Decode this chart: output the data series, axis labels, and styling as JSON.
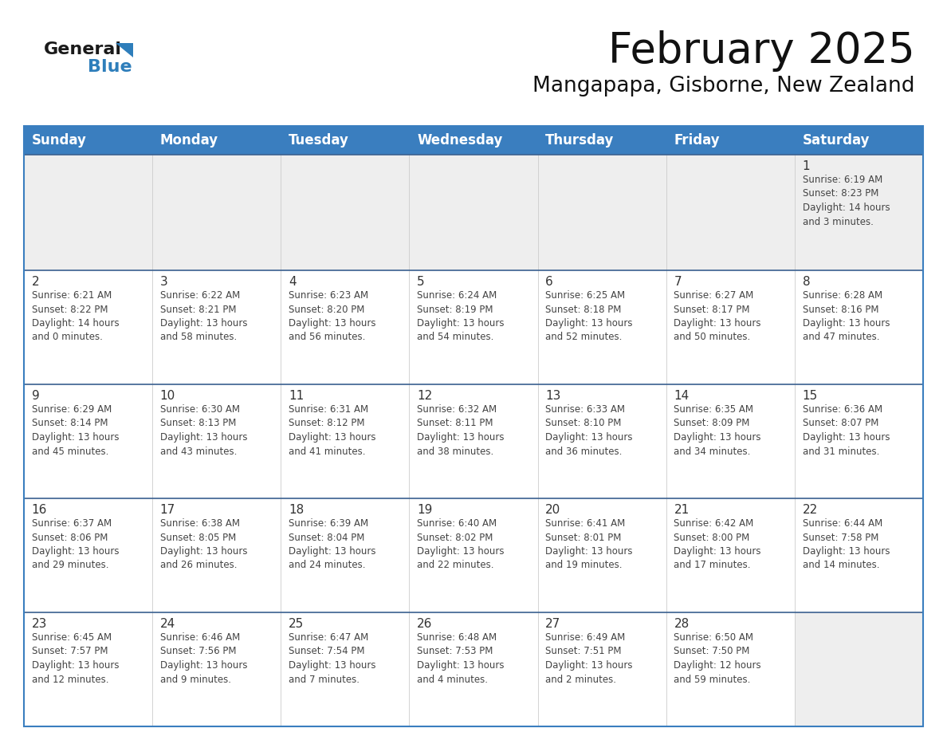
{
  "title": "February 2025",
  "subtitle": "Mangapapa, Gisborne, New Zealand",
  "header_bg": "#3a7ebf",
  "header_text": "#ffffff",
  "cell_bg_gray": "#eeeeee",
  "cell_bg_white": "#ffffff",
  "row_border_color": "#3a6090",
  "outer_border_color": "#3a7ebf",
  "col_divider_color": "#cccccc",
  "day_headers": [
    "Sunday",
    "Monday",
    "Tuesday",
    "Wednesday",
    "Thursday",
    "Friday",
    "Saturday"
  ],
  "calendar_data": [
    [
      null,
      null,
      null,
      null,
      null,
      null,
      {
        "day": 1,
        "sunrise": "6:19 AM",
        "sunset": "8:23 PM",
        "daylight": "14 hours\nand 3 minutes."
      }
    ],
    [
      {
        "day": 2,
        "sunrise": "6:21 AM",
        "sunset": "8:22 PM",
        "daylight": "14 hours\nand 0 minutes."
      },
      {
        "day": 3,
        "sunrise": "6:22 AM",
        "sunset": "8:21 PM",
        "daylight": "13 hours\nand 58 minutes."
      },
      {
        "day": 4,
        "sunrise": "6:23 AM",
        "sunset": "8:20 PM",
        "daylight": "13 hours\nand 56 minutes."
      },
      {
        "day": 5,
        "sunrise": "6:24 AM",
        "sunset": "8:19 PM",
        "daylight": "13 hours\nand 54 minutes."
      },
      {
        "day": 6,
        "sunrise": "6:25 AM",
        "sunset": "8:18 PM",
        "daylight": "13 hours\nand 52 minutes."
      },
      {
        "day": 7,
        "sunrise": "6:27 AM",
        "sunset": "8:17 PM",
        "daylight": "13 hours\nand 50 minutes."
      },
      {
        "day": 8,
        "sunrise": "6:28 AM",
        "sunset": "8:16 PM",
        "daylight": "13 hours\nand 47 minutes."
      }
    ],
    [
      {
        "day": 9,
        "sunrise": "6:29 AM",
        "sunset": "8:14 PM",
        "daylight": "13 hours\nand 45 minutes."
      },
      {
        "day": 10,
        "sunrise": "6:30 AM",
        "sunset": "8:13 PM",
        "daylight": "13 hours\nand 43 minutes."
      },
      {
        "day": 11,
        "sunrise": "6:31 AM",
        "sunset": "8:12 PM",
        "daylight": "13 hours\nand 41 minutes."
      },
      {
        "day": 12,
        "sunrise": "6:32 AM",
        "sunset": "8:11 PM",
        "daylight": "13 hours\nand 38 minutes."
      },
      {
        "day": 13,
        "sunrise": "6:33 AM",
        "sunset": "8:10 PM",
        "daylight": "13 hours\nand 36 minutes."
      },
      {
        "day": 14,
        "sunrise": "6:35 AM",
        "sunset": "8:09 PM",
        "daylight": "13 hours\nand 34 minutes."
      },
      {
        "day": 15,
        "sunrise": "6:36 AM",
        "sunset": "8:07 PM",
        "daylight": "13 hours\nand 31 minutes."
      }
    ],
    [
      {
        "day": 16,
        "sunrise": "6:37 AM",
        "sunset": "8:06 PM",
        "daylight": "13 hours\nand 29 minutes."
      },
      {
        "day": 17,
        "sunrise": "6:38 AM",
        "sunset": "8:05 PM",
        "daylight": "13 hours\nand 26 minutes."
      },
      {
        "day": 18,
        "sunrise": "6:39 AM",
        "sunset": "8:04 PM",
        "daylight": "13 hours\nand 24 minutes."
      },
      {
        "day": 19,
        "sunrise": "6:40 AM",
        "sunset": "8:02 PM",
        "daylight": "13 hours\nand 22 minutes."
      },
      {
        "day": 20,
        "sunrise": "6:41 AM",
        "sunset": "8:01 PM",
        "daylight": "13 hours\nand 19 minutes."
      },
      {
        "day": 21,
        "sunrise": "6:42 AM",
        "sunset": "8:00 PM",
        "daylight": "13 hours\nand 17 minutes."
      },
      {
        "day": 22,
        "sunrise": "6:44 AM",
        "sunset": "7:58 PM",
        "daylight": "13 hours\nand 14 minutes."
      }
    ],
    [
      {
        "day": 23,
        "sunrise": "6:45 AM",
        "sunset": "7:57 PM",
        "daylight": "13 hours\nand 12 minutes."
      },
      {
        "day": 24,
        "sunrise": "6:46 AM",
        "sunset": "7:56 PM",
        "daylight": "13 hours\nand 9 minutes."
      },
      {
        "day": 25,
        "sunrise": "6:47 AM",
        "sunset": "7:54 PM",
        "daylight": "13 hours\nand 7 minutes."
      },
      {
        "day": 26,
        "sunrise": "6:48 AM",
        "sunset": "7:53 PM",
        "daylight": "13 hours\nand 4 minutes."
      },
      {
        "day": 27,
        "sunrise": "6:49 AM",
        "sunset": "7:51 PM",
        "daylight": "13 hours\nand 2 minutes."
      },
      {
        "day": 28,
        "sunrise": "6:50 AM",
        "sunset": "7:50 PM",
        "daylight": "12 hours\nand 59 minutes."
      },
      null
    ]
  ],
  "logo_color_general": "#1a1a1a",
  "logo_color_blue": "#2e7ebb",
  "title_fontsize": 38,
  "subtitle_fontsize": 19,
  "header_fontsize": 12,
  "day_num_fontsize": 11,
  "cell_text_fontsize": 8.5
}
